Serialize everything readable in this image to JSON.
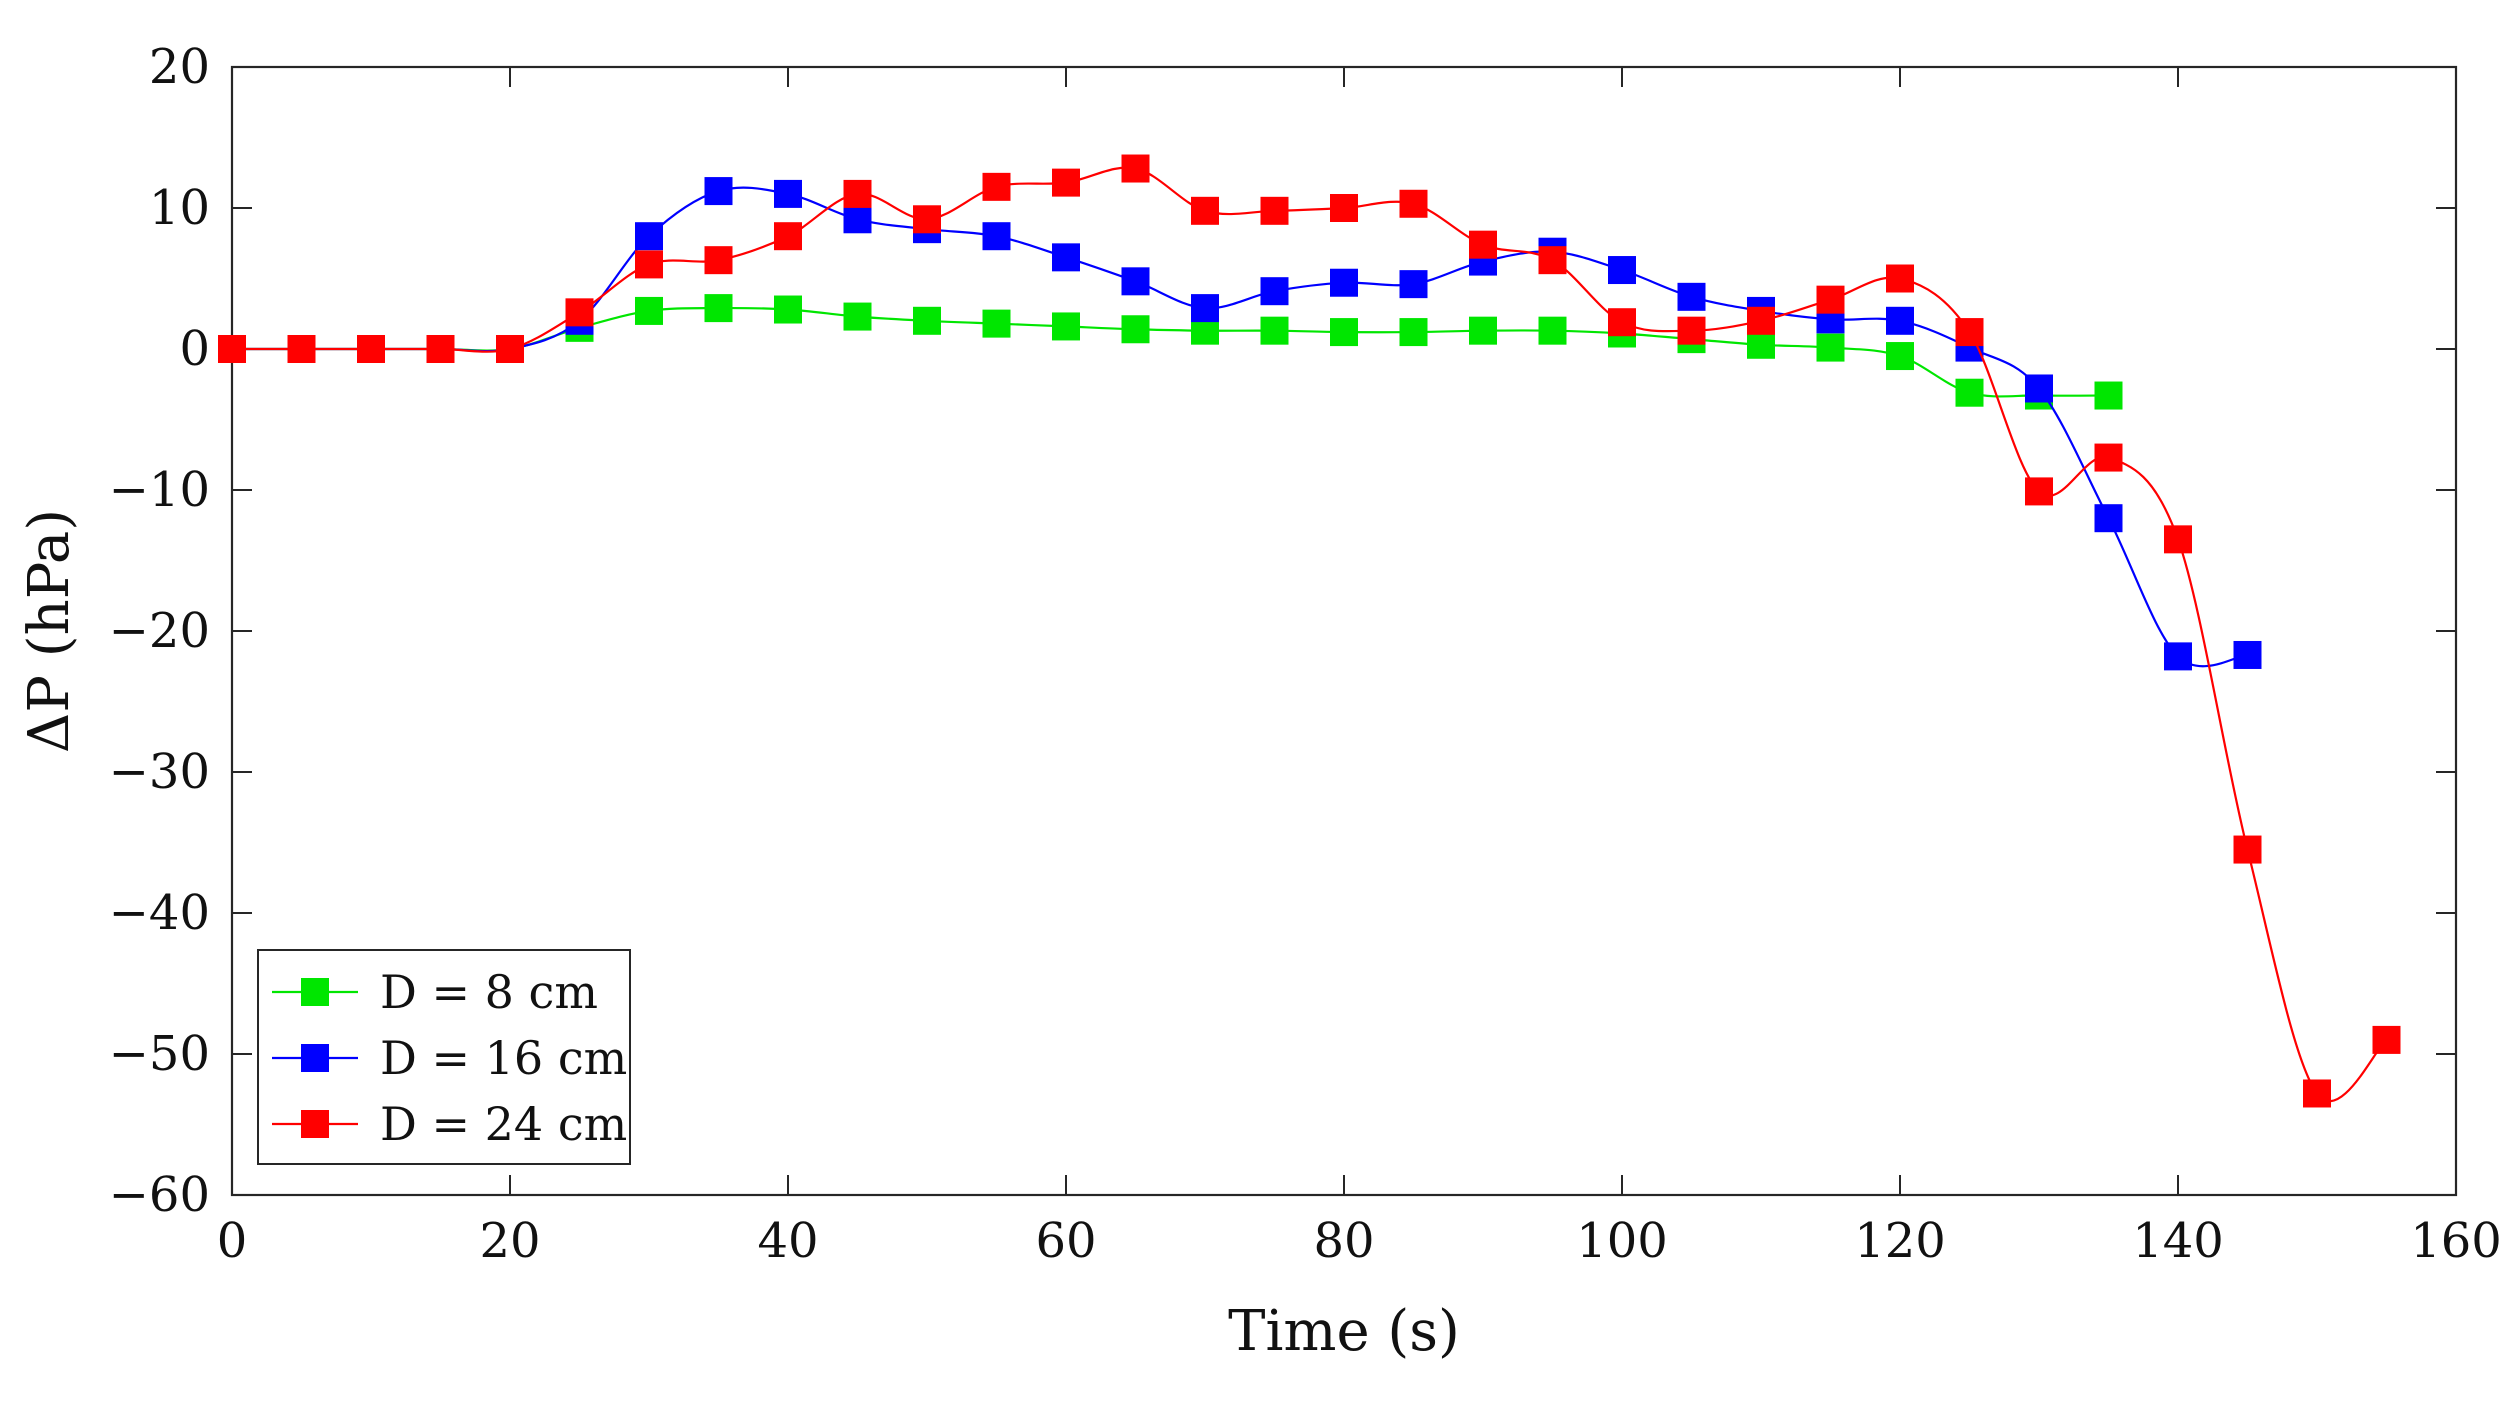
{
  "chart_data": {
    "type": "line",
    "title": "",
    "xlabel": "Time (s)",
    "ylabel": "ΔP (hPa)",
    "xlim": [
      0,
      160
    ],
    "ylim": [
      -60,
      20
    ],
    "xticks": [
      0,
      20,
      40,
      60,
      80,
      100,
      120,
      140,
      160
    ],
    "yticks": [
      20,
      10,
      0,
      -10,
      -20,
      -30,
      -40,
      -50,
      -60
    ],
    "xtick_labels": [
      "0",
      "20",
      "40",
      "60",
      "80",
      "100",
      "120",
      "140",
      "160"
    ],
    "ytick_labels": [
      "20",
      "10",
      "0",
      "−10",
      "−20",
      "−30",
      "−40",
      "−50",
      "−60"
    ],
    "grid": false,
    "legend_position": "bottom-left",
    "series": [
      {
        "name": "D = 8 cm",
        "color": "#00e600",
        "marker": "square",
        "x": [
          0,
          5,
          10,
          15,
          20,
          25,
          30,
          35,
          40,
          45,
          50,
          55,
          60,
          65,
          70,
          75,
          80,
          85,
          90,
          95,
          100,
          105,
          110,
          115,
          120,
          125,
          130,
          135
        ],
        "y": [
          0,
          0,
          0,
          0,
          0,
          1.5,
          2.7,
          2.9,
          2.8,
          2.3,
          2.0,
          1.8,
          1.6,
          1.4,
          1.3,
          1.3,
          1.2,
          1.2,
          1.3,
          1.3,
          1.1,
          0.7,
          0.3,
          0.1,
          -0.5,
          -3.1,
          -3.3,
          -3.3
        ]
      },
      {
        "name": "D = 16 cm",
        "color": "#0000ff",
        "marker": "square",
        "x": [
          0,
          5,
          10,
          15,
          20,
          25,
          30,
          35,
          40,
          45,
          50,
          55,
          60,
          65,
          70,
          75,
          80,
          85,
          90,
          95,
          100,
          105,
          110,
          115,
          120,
          125,
          130,
          135,
          140,
          145
        ],
        "y": [
          0,
          0,
          0,
          0,
          0,
          2.0,
          8.0,
          11.2,
          11.0,
          9.2,
          8.5,
          8.0,
          6.5,
          4.8,
          2.9,
          4.1,
          4.7,
          4.6,
          6.2,
          6.9,
          5.6,
          3.7,
          2.7,
          2.1,
          2.0,
          0.1,
          -2.8,
          -12.0,
          -21.8,
          -21.7
        ]
      },
      {
        "name": "D = 24 cm",
        "color": "#ff0000",
        "marker": "square",
        "x": [
          0,
          5,
          10,
          15,
          20,
          25,
          30,
          35,
          40,
          45,
          50,
          55,
          60,
          65,
          70,
          75,
          80,
          85,
          90,
          95,
          100,
          105,
          110,
          115,
          120,
          125,
          130,
          135,
          140,
          145,
          150,
          155
        ],
        "y": [
          0,
          0,
          0,
          0,
          0,
          2.6,
          6.0,
          6.3,
          8.0,
          11.0,
          9.2,
          11.5,
          11.8,
          12.8,
          9.8,
          9.8,
          10.0,
          10.3,
          7.4,
          6.3,
          1.9,
          1.3,
          2.0,
          3.5,
          5.0,
          1.2,
          -10.1,
          -7.7,
          -13.5,
          -35.5,
          -52.8,
          -49.0
        ]
      }
    ]
  }
}
